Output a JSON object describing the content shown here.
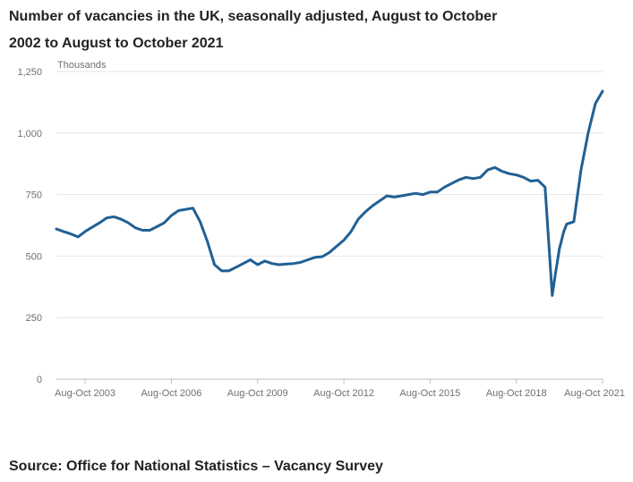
{
  "title_line1": "Number of vacancies in the UK, seasonally adjusted, August to October",
  "title_line2": "2002 to August to October 2021",
  "source": "Source: Office for National Statistics – Vacancy Survey",
  "colors": {
    "line": "#206095",
    "grid": "#e6e6e6",
    "axis": "#bdbdbd",
    "tick_text": "#707070"
  },
  "chart_data": {
    "type": "line",
    "title": "Number of vacancies in the UK, seasonally adjusted, August to October 2002 to August to October 2021",
    "ylabel": "Thousands",
    "xlabel": "",
    "ylim": [
      0,
      1250
    ],
    "xlim": [
      2002.75,
      2021.75
    ],
    "y_ticks": [
      "0",
      "250",
      "500",
      "750",
      "1,000",
      "1,250"
    ],
    "y_tick_values": [
      0,
      250,
      500,
      750,
      1000,
      1250
    ],
    "x_tick_labels": [
      "Aug-Oct 2003",
      "Aug-Oct 2006",
      "Aug-Oct 2009",
      "Aug-Oct 2012",
      "Aug-Oct 2015",
      "Aug-Oct 2018",
      "Aug-Oct 2021"
    ],
    "x_tick_values": [
      2003.75,
      2006.75,
      2009.75,
      2012.75,
      2015.75,
      2018.75,
      2021.75
    ],
    "grid": true,
    "series": [
      {
        "name": "",
        "x": [
          2002.75,
          2003.0,
          2003.25,
          2003.5,
          2003.75,
          2004.0,
          2004.25,
          2004.5,
          2004.75,
          2005.0,
          2005.25,
          2005.5,
          2005.75,
          2006.0,
          2006.25,
          2006.5,
          2006.75,
          2007.0,
          2007.25,
          2007.5,
          2007.75,
          2008.0,
          2008.25,
          2008.5,
          2008.75,
          2009.0,
          2009.25,
          2009.5,
          2009.75,
          2010.0,
          2010.25,
          2010.5,
          2010.75,
          2011.0,
          2011.25,
          2011.5,
          2011.75,
          2012.0,
          2012.25,
          2012.5,
          2012.75,
          2013.0,
          2013.25,
          2013.5,
          2013.75,
          2014.0,
          2014.25,
          2014.5,
          2014.75,
          2015.0,
          2015.25,
          2015.5,
          2015.75,
          2016.0,
          2016.25,
          2016.5,
          2016.75,
          2017.0,
          2017.25,
          2017.5,
          2017.75,
          2018.0,
          2018.25,
          2018.5,
          2018.75,
          2019.0,
          2019.25,
          2019.5,
          2019.75,
          2020.0,
          2020.1,
          2020.25,
          2020.4,
          2020.5,
          2020.75,
          2021.0,
          2021.25,
          2021.5,
          2021.75
        ],
        "values": [
          610,
          600,
          590,
          578,
          600,
          618,
          635,
          655,
          660,
          650,
          635,
          615,
          605,
          605,
          620,
          635,
          665,
          685,
          690,
          695,
          640,
          560,
          465,
          440,
          440,
          455,
          470,
          485,
          465,
          480,
          470,
          465,
          468,
          470,
          475,
          485,
          495,
          498,
          515,
          540,
          565,
          600,
          650,
          680,
          705,
          725,
          745,
          740,
          745,
          750,
          755,
          750,
          760,
          760,
          780,
          795,
          810,
          820,
          815,
          820,
          850,
          860,
          845,
          835,
          830,
          820,
          805,
          808,
          780,
          340,
          420,
          530,
          600,
          630,
          640,
          850,
          1000,
          1120,
          1170
        ]
      }
    ]
  }
}
